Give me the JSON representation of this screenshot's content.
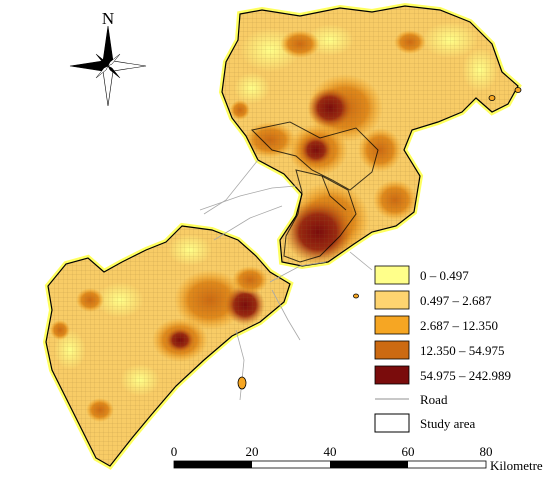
{
  "north_label": "N",
  "legend": {
    "classes": [
      {
        "label": "0 – 0.497",
        "color": "#ffff8a"
      },
      {
        "label": "0.497 – 2.687",
        "color": "#fed470"
      },
      {
        "label": "2.687 – 12.350",
        "color": "#f6a623"
      },
      {
        "label": "12.350 – 54.975",
        "color": "#cc6a12"
      },
      {
        "label": "54.975 – 242.989",
        "color": "#7a0c0c"
      }
    ],
    "road_label": "Road",
    "study_area_label": "Study area"
  },
  "scale_bar": {
    "ticks": [
      "0",
      "20",
      "40",
      "60",
      "80"
    ],
    "unit": "Kilometre"
  }
}
